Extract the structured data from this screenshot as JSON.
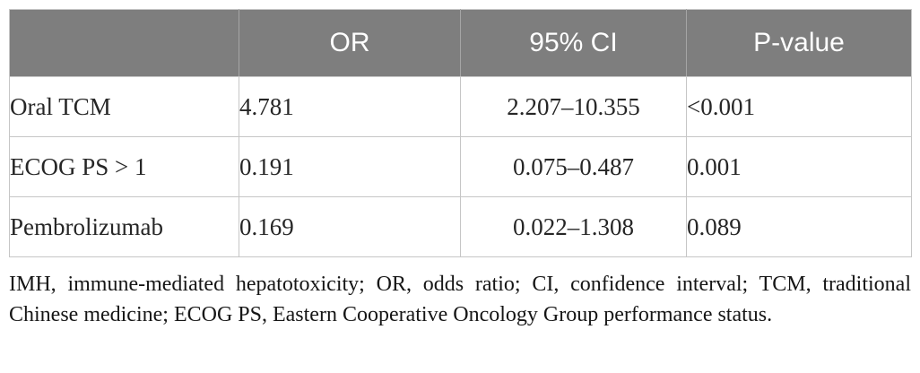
{
  "table": {
    "headers": [
      "",
      "OR",
      "95% CI",
      "P-value"
    ],
    "rows": [
      {
        "label": "Oral TCM",
        "or": "4.781",
        "ci": "2.207–10.355",
        "p": "<0.001"
      },
      {
        "label": "ECOG PS > 1",
        "or": "0.191",
        "ci": "0.075–0.487",
        "p": "0.001"
      },
      {
        "label": "Pembrolizumab",
        "or": "0.169",
        "ci": "0.022–1.308",
        "p": "0.089"
      }
    ]
  },
  "footnote": {
    "text": "IMH, immune-mediated hepatotoxicity; OR, odds ratio; CI, confidence interval; TCM, traditional Chinese medicine; ECOG PS, Eastern Cooperative Oncology Group performance status."
  },
  "colors": {
    "header_bg": "#7e7e7e",
    "header_text": "#ffffff",
    "border": "#c6c6c6",
    "body_text": "#262626"
  }
}
